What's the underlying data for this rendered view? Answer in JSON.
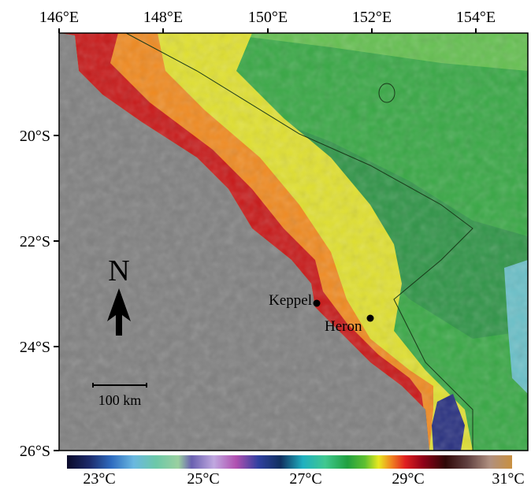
{
  "map": {
    "lon_labels": [
      "146°E",
      "148°E",
      "150°E",
      "152°E",
      "154°E"
    ],
    "lat_labels": [
      "20°S",
      "22°S",
      "24°S",
      "26°S"
    ],
    "north": "N",
    "scale_bar": "100 km",
    "sites": [
      {
        "label": "Keppel"
      },
      {
        "label": "Heron"
      }
    ],
    "colorbar_labels": [
      "23°C",
      "25°C",
      "27°C",
      "29°C",
      "31°C"
    ]
  }
}
